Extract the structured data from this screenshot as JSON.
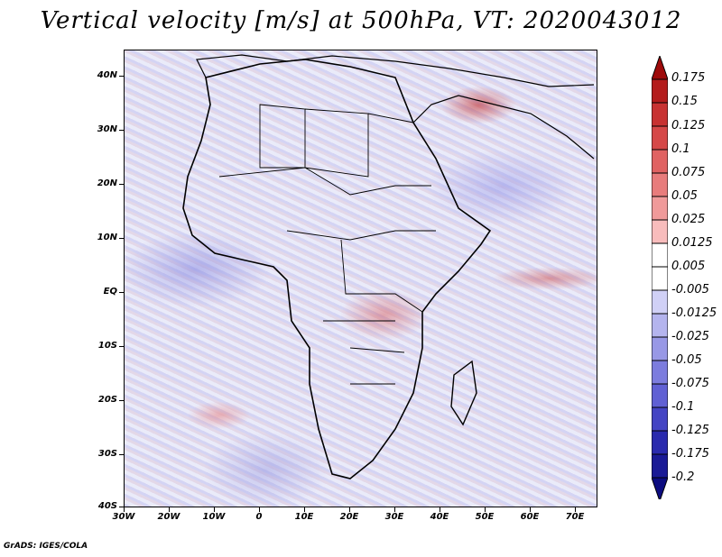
{
  "title": "Vertical velocity [m/s] at 500hPa, VT: 2020043012",
  "footer": "GrADS: IGES/COLA",
  "axes": {
    "lat_labels": [
      "40N",
      "30N",
      "20N",
      "10N",
      "EQ",
      "10S",
      "20S",
      "30S",
      "40S"
    ],
    "lon_labels": [
      "30W",
      "20W",
      "10W",
      "0",
      "10E",
      "20E",
      "30E",
      "40E",
      "50E",
      "60E",
      "70E"
    ]
  },
  "colorbar": {
    "labels": [
      "0.175",
      "0.15",
      "0.125",
      "0.1",
      "0.075",
      "0.05",
      "0.025",
      "0.0125",
      "0.005",
      "-0.005",
      "-0.0125",
      "-0.025",
      "-0.05",
      "-0.075",
      "-0.1",
      "-0.125",
      "-0.175",
      "-0.2"
    ],
    "colors": [
      "#9e0a0a",
      "#b41c1c",
      "#c83232",
      "#d64848",
      "#e06262",
      "#e87c7c",
      "#f09a9a",
      "#f8bcbc",
      "#ffffff",
      "#ffffff",
      "#d0d0f6",
      "#b4b4ee",
      "#9898e6",
      "#7c7cde",
      "#6060d4",
      "#4444c4",
      "#2a2aae",
      "#1a1a96",
      "#0c0c80"
    ]
  }
}
